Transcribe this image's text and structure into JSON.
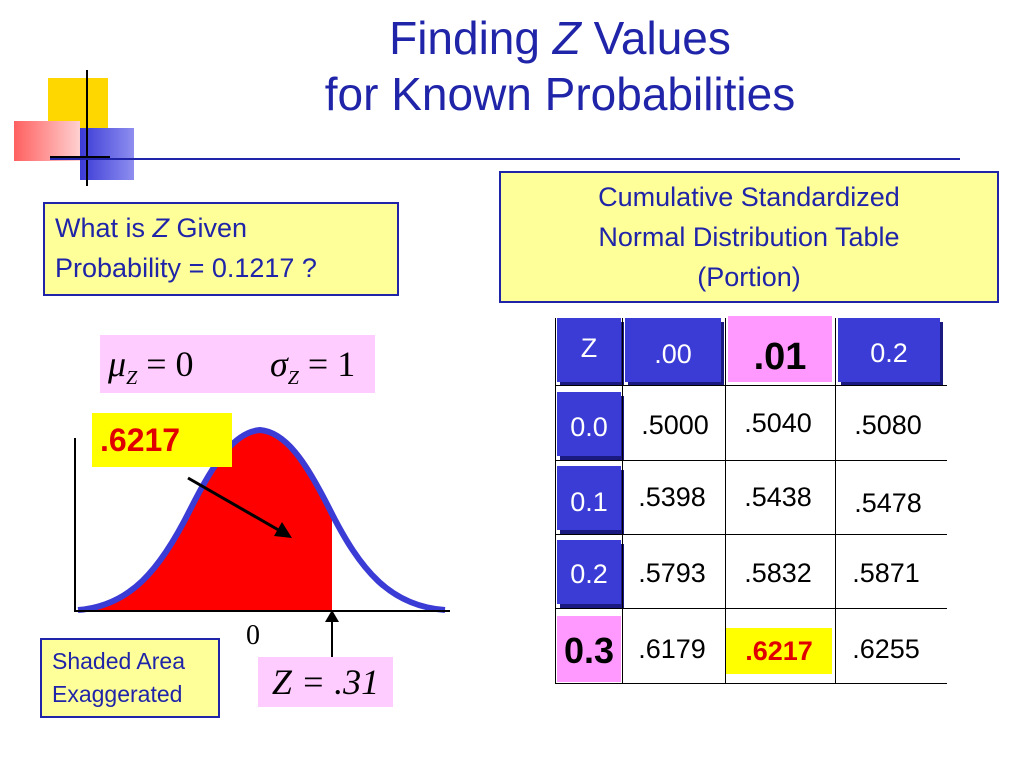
{
  "title": {
    "line1_before": "Finding ",
    "line1_italic": "Z",
    "line1_after": " Values",
    "line2": "for Known Probabilities"
  },
  "question": {
    "text_before": "What is ",
    "italic": "Z",
    "text_after": " Given",
    "line2": "Probability = 0.1217 ?"
  },
  "table_caption": {
    "line1": "Cumulative Standardized",
    "line2": "Normal Distribution Table",
    "line3": "(Portion)"
  },
  "params": {
    "mu": "μ",
    "mu_sub": "Z",
    "mu_eq": " = 0",
    "sigma": "σ",
    "sigma_sub": "Z",
    "sigma_eq": " = 1"
  },
  "area_label": ".6217",
  "zero_label": "0",
  "z_equation": "Z = .31",
  "note": {
    "line1": "Shaded Area",
    "line2": "Exaggerated"
  },
  "table": {
    "header": [
      "Z",
      ".00",
      ".01",
      "0.2"
    ],
    "rows": [
      {
        "z": "0.0",
        "values": [
          ".5000",
          ".5040",
          ".5080"
        ]
      },
      {
        "z": "0.1",
        "values": [
          ".5398",
          ".5438",
          ".5478"
        ]
      },
      {
        "z": "0.2",
        "values": [
          ".5793",
          ".5832",
          ".5871"
        ]
      },
      {
        "z": "0.3",
        "values": [
          ".6179",
          ".6217",
          ".6255"
        ]
      }
    ]
  },
  "colors": {
    "title": "#1f24a8",
    "curve": "#3b3bd6",
    "shade": "#ff0000",
    "highlight": "#ffff00",
    "pink": "#ff99ff",
    "box": "#ffff99"
  }
}
